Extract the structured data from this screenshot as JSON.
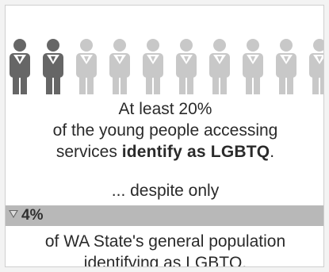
{
  "icons": {
    "person_count": 10,
    "highlighted_count": 2,
    "colors": {
      "highlighted": "#666666",
      "normal": "#c8c8c8",
      "tie": "#ffffff"
    }
  },
  "headline": {
    "line1": "At least 20%",
    "line2": "of the young people accessing",
    "line3_prefix": "services ",
    "line3_bold": "identify as LGBTQ",
    "line3_suffix": "."
  },
  "despite": {
    "text": "... despite only"
  },
  "population_bar": {
    "value_label": "4%",
    "bar_color": "#b8b8b8"
  },
  "population_text": {
    "line1": "of WA State's general population",
    "line2": "identifying as LGBTQ."
  }
}
